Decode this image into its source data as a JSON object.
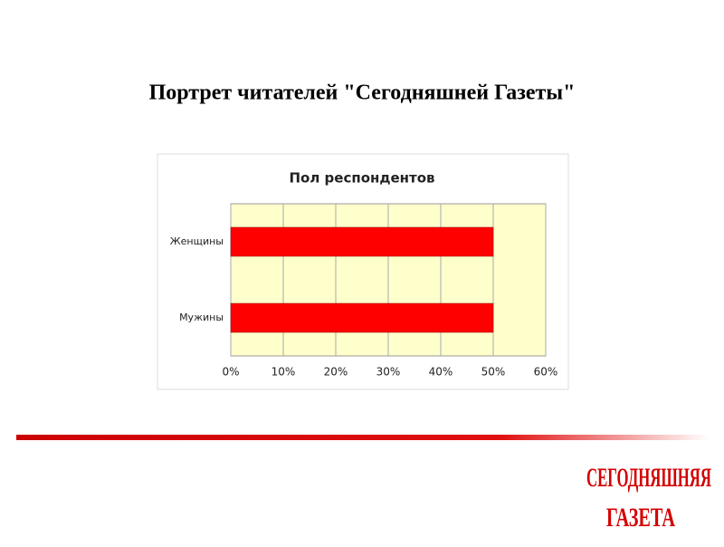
{
  "slide_title": "Портрет читателей \"Сегодняшней Газеты\"",
  "logo": [
    "СЕГОДНЯШНЯЯ",
    "ГАЗЕТА"
  ],
  "chart_data": {
    "type": "hbar",
    "title": "Пол респондентов",
    "categories": [
      "Женщины",
      "Мужины"
    ],
    "values": [
      50,
      50
    ],
    "color": "#ff0000",
    "plot_background": "#ffffcc",
    "xlim": [
      0,
      60
    ],
    "xticks": [
      {
        "value": 0,
        "label": "0%"
      },
      {
        "value": 10,
        "label": "10%"
      },
      {
        "value": 20,
        "label": "20%"
      },
      {
        "value": 30,
        "label": "30%"
      },
      {
        "value": 40,
        "label": "40%"
      },
      {
        "value": 50,
        "label": "50%"
      },
      {
        "value": 60,
        "label": "60%"
      }
    ],
    "grid": true
  }
}
